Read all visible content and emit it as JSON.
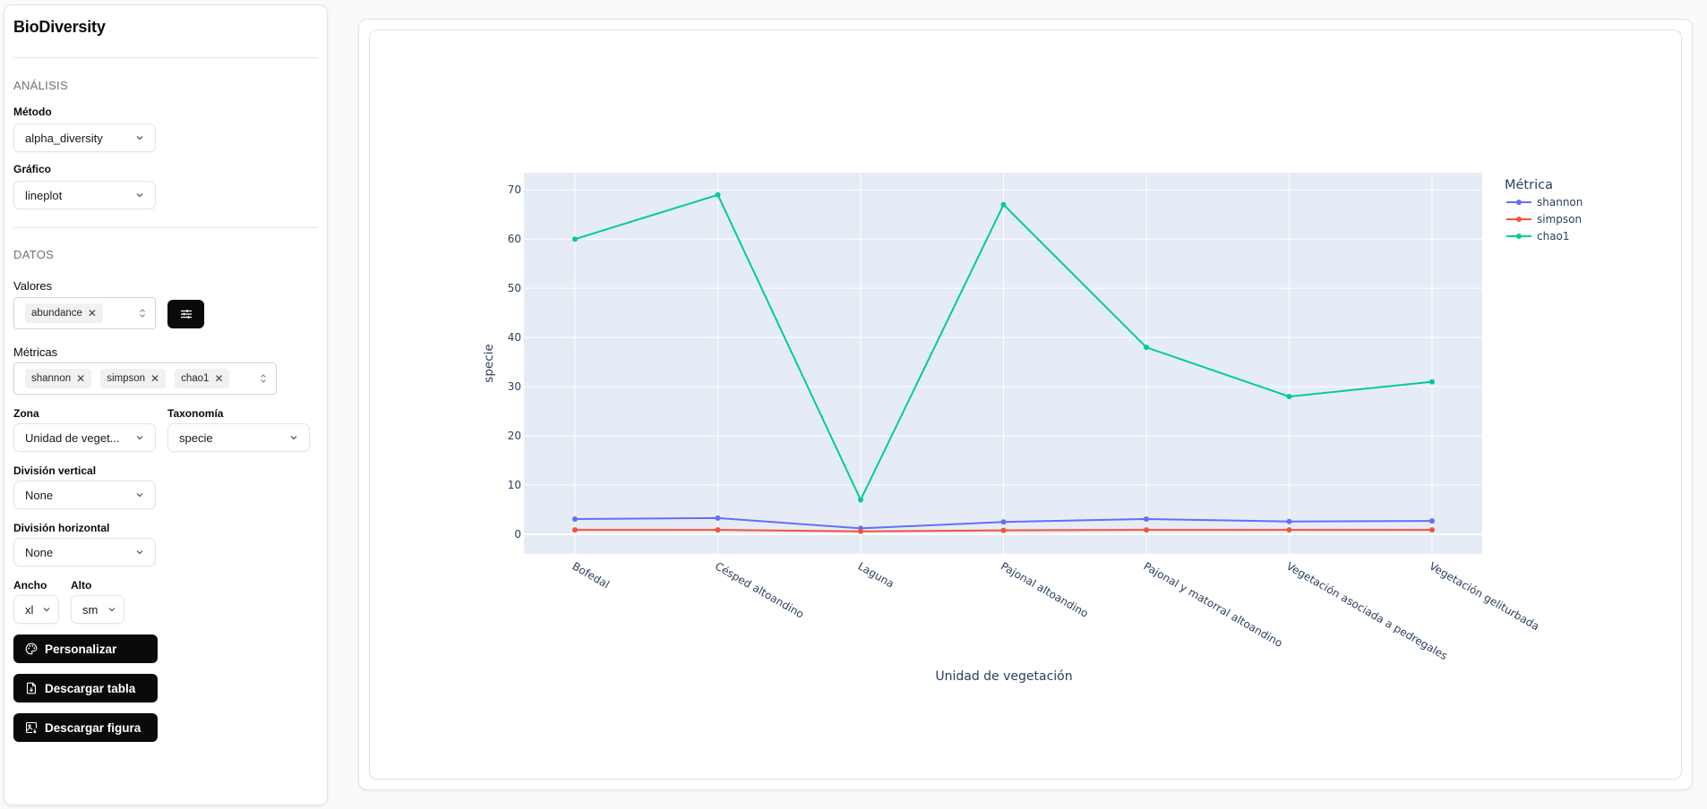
{
  "sidebar": {
    "title": "BioDiversity",
    "analysis": {
      "section_label": "ANÁLISIS",
      "method_label": "Método",
      "method_value": "alpha_diversity",
      "chart_label": "Gráfico",
      "chart_value": "lineplot"
    },
    "data": {
      "section_label": "DATOS",
      "values_label": "Valores",
      "values_selected": [
        "abundance"
      ],
      "metrics_label": "Métricas",
      "metrics_selected": [
        "shannon",
        "simpson",
        "chao1"
      ],
      "zone_label": "Zona",
      "zone_value": "Unidad de veget...",
      "taxonomy_label": "Taxonomía",
      "taxonomy_value": "specie",
      "vertical_split_label": "División vertical",
      "vertical_split_value": "None",
      "horizontal_split_label": "División horizontal",
      "horizontal_split_value": "None",
      "width_label": "Ancho",
      "width_value": "xl",
      "height_label": "Alto",
      "height_value": "sm"
    },
    "buttons": {
      "customize": "Personalizar",
      "download_table": "Descargar tabla",
      "download_figure": "Descargar figura"
    },
    "icons": {
      "filter": "sliders-icon",
      "customize": "palette-icon",
      "download_table": "file-download-icon",
      "download_figure": "image-download-icon"
    }
  },
  "chart_data": {
    "type": "line",
    "title": "",
    "xlabel": "Unidad de vegetación",
    "ylabel": "specie",
    "ylim": [
      -4,
      73.5
    ],
    "yticks": [
      0,
      10,
      20,
      30,
      40,
      50,
      60,
      70
    ],
    "grid": true,
    "legend_title": "Métrica",
    "legend_position": "right-top",
    "categories": [
      "Bofedal",
      "Césped altoandino",
      "Laguna",
      "Pajonal altoandino",
      "Pajonal y matorral altoandino",
      "Vegetación asociada a pedregales",
      "Vegetación geliturbada"
    ],
    "series": [
      {
        "name": "shannon",
        "color": "#636efa",
        "values": [
          3.1,
          3.3,
          1.2,
          2.5,
          3.1,
          2.6,
          2.7
        ]
      },
      {
        "name": "simpson",
        "color": "#ef553b",
        "values": [
          0.9,
          0.9,
          0.6,
          0.8,
          0.9,
          0.9,
          0.9
        ]
      },
      {
        "name": "chao1",
        "color": "#00cc96",
        "values": [
          60,
          69,
          7,
          67,
          38,
          28,
          31
        ]
      }
    ],
    "colors": {
      "plot_bg": "#e5ecf6",
      "grid": "#ffffff",
      "axis_text": "#2a3f5f"
    }
  }
}
